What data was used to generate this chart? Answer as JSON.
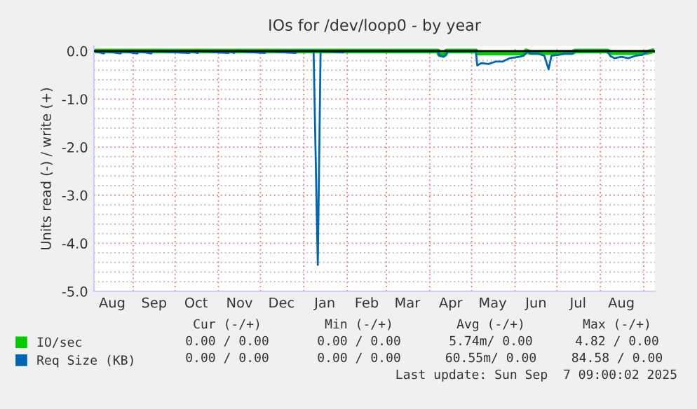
{
  "chart_data": {
    "type": "line",
    "title": "IOs for /dev/loop0 - by year",
    "ylabel": "Units read (-) / write (+)",
    "xlim": [
      "2024-08-04",
      "2025-09-09"
    ],
    "xticks": [
      {
        "value": "2024-08-17",
        "label": "Aug"
      },
      {
        "value": "2024-09-01",
        "label": null
      },
      {
        "value": "2024-09-16",
        "label": "Sep"
      },
      {
        "value": "2024-10-01",
        "label": null
      },
      {
        "value": "2024-10-16",
        "label": "Oct"
      },
      {
        "value": "2024-11-01",
        "label": null
      },
      {
        "value": "2024-11-16",
        "label": "Nov"
      },
      {
        "value": "2024-12-01",
        "label": null
      },
      {
        "value": "2024-12-16",
        "label": "Dec"
      },
      {
        "value": "2025-01-01",
        "label": null
      },
      {
        "value": "2025-01-16",
        "label": "Jan"
      },
      {
        "value": "2025-02-01",
        "label": null
      },
      {
        "value": "2025-02-15",
        "label": "Feb"
      },
      {
        "value": "2025-03-01",
        "label": null
      },
      {
        "value": "2025-03-16",
        "label": "Mar"
      },
      {
        "value": "2025-04-01",
        "label": null
      },
      {
        "value": "2025-04-16",
        "label": "Apr"
      },
      {
        "value": "2025-05-01",
        "label": null
      },
      {
        "value": "2025-05-16",
        "label": "May"
      },
      {
        "value": "2025-06-01",
        "label": null
      },
      {
        "value": "2025-06-16",
        "label": "Jun"
      },
      {
        "value": "2025-07-01",
        "label": null
      },
      {
        "value": "2025-07-16",
        "label": "Jul"
      },
      {
        "value": "2025-08-01",
        "label": null
      },
      {
        "value": "2025-08-16",
        "label": "Aug"
      },
      {
        "value": "2025-09-01",
        "label": null
      }
    ],
    "ylim": [
      -5,
      0.1
    ],
    "yticks": [
      {
        "value": 0,
        "label": "0.0"
      },
      {
        "value": -0.2,
        "label": null
      },
      {
        "value": -0.4,
        "label": null
      },
      {
        "value": -0.6,
        "label": null
      },
      {
        "value": -0.8,
        "label": null
      },
      {
        "value": -1,
        "label": "-1.0"
      },
      {
        "value": -1.2,
        "label": null
      },
      {
        "value": -1.4,
        "label": null
      },
      {
        "value": -1.6,
        "label": null
      },
      {
        "value": -1.8,
        "label": null
      },
      {
        "value": -2,
        "label": "-2.0"
      },
      {
        "value": -2.2,
        "label": null
      },
      {
        "value": -2.4,
        "label": null
      },
      {
        "value": -2.6,
        "label": null
      },
      {
        "value": -2.8,
        "label": null
      },
      {
        "value": -3,
        "label": "-3.0"
      },
      {
        "value": -3.2,
        "label": null
      },
      {
        "value": -3.4,
        "label": null
      },
      {
        "value": -3.6,
        "label": null
      },
      {
        "value": -3.8,
        "label": null
      },
      {
        "value": -4,
        "label": "-4.0"
      },
      {
        "value": -4.2,
        "label": null
      },
      {
        "value": -4.4,
        "label": null
      },
      {
        "value": -4.6,
        "label": null
      },
      {
        "value": -4.8,
        "label": null
      },
      {
        "value": -5,
        "label": "-5.0"
      }
    ],
    "grid": true,
    "legend": "bottom left",
    "ref_lines": [
      {
        "axis": "y",
        "value": 0,
        "color": "#000000"
      }
    ],
    "series": [
      {
        "name": "IO/sec",
        "color": "#00cc00",
        "x": [
          "2024-08-04",
          "2025-04-07",
          "2025-04-08",
          "2025-04-12",
          "2025-04-13",
          "2025-05-04",
          "2025-05-05",
          "2025-06-08",
          "2025-06-09",
          "2025-06-12",
          "2025-07-12",
          "2025-07-14",
          "2025-08-06",
          "2025-08-08",
          "2025-09-03",
          "2025-09-07"
        ],
        "values": [
          0,
          0,
          -0.07,
          -0.07,
          0,
          0,
          -0.04,
          -0.04,
          0,
          -0.03,
          -0.03,
          0,
          0,
          -0.03,
          -0.03,
          0
        ]
      },
      {
        "name": "Req Size (KB)",
        "color": "#0066b3",
        "x": [
          "2024-08-04",
          "2024-08-11",
          "2024-08-12",
          "2024-08-23",
          "2024-08-24",
          "2024-09-04",
          "2024-09-05",
          "2024-09-14",
          "2024-09-15",
          "2024-10-11",
          "2024-10-12",
          "2024-10-17",
          "2024-10-18",
          "2024-11-08",
          "2024-11-09",
          "2024-11-12",
          "2024-11-13",
          "2024-12-04",
          "2024-12-05",
          "2024-12-26",
          "2024-12-27",
          "2025-01-08",
          "2025-01-11",
          "2025-01-13",
          "2025-01-29",
          "2025-01-30",
          "2025-04-07",
          "2025-04-08",
          "2025-04-11",
          "2025-04-13",
          "2025-04-14",
          "2025-05-04",
          "2025-05-05",
          "2025-05-08",
          "2025-05-13",
          "2025-05-18",
          "2025-05-23",
          "2025-05-28",
          "2025-06-04",
          "2025-06-07",
          "2025-06-10",
          "2025-06-12",
          "2025-06-17",
          "2025-06-22",
          "2025-06-25",
          "2025-06-27",
          "2025-07-02",
          "2025-07-07",
          "2025-07-12",
          "2025-07-14",
          "2025-08-06",
          "2025-08-08",
          "2025-08-11",
          "2025-08-16",
          "2025-08-21",
          "2025-08-26",
          "2025-08-31",
          "2025-09-03",
          "2025-09-07"
        ],
        "values": [
          0,
          -0.05,
          0,
          -0.05,
          0,
          -0.05,
          0,
          -0.05,
          0,
          -0.04,
          0,
          -0.04,
          0,
          -0.04,
          0,
          -0.04,
          0,
          -0.04,
          0,
          -0.04,
          0,
          0,
          -4.45,
          0,
          -0.03,
          0,
          0,
          -0.1,
          -0.12,
          -0.05,
          0,
          0,
          -0.3,
          -0.25,
          -0.27,
          -0.22,
          -0.22,
          -0.15,
          -0.12,
          -0.1,
          0,
          -0.05,
          -0.05,
          -0.1,
          -0.38,
          -0.1,
          -0.08,
          -0.05,
          -0.05,
          0,
          0,
          -0.1,
          -0.15,
          -0.12,
          -0.15,
          -0.1,
          -0.08,
          -0.02,
          0
        ]
      }
    ],
    "annotations": [
      "Cur (-/+)",
      "Min (-/+)",
      "Avg (-/+)",
      "Max (-/+)",
      "0.00 / 0.00",
      "0.00 / 0.00",
      "5.74m/ 0.00",
      "4.82 / 0.00",
      "0.00 / 0.00",
      "0.00 / 0.00",
      "60.55m/ 0.00",
      "84.58 / 0.00",
      "Last update: Sun Sep  7 09:00:02 2025"
    ]
  }
}
